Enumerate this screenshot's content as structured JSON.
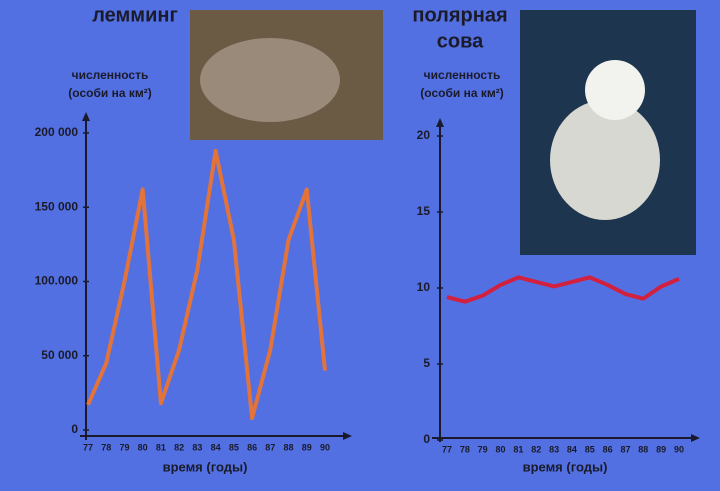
{
  "chart_data": [
    {
      "type": "line",
      "title": [
        "лемминг"
      ],
      "ylabel": [
        "численность",
        "(особи на км²)"
      ],
      "xlabel": "время (годы)",
      "categories": [
        "77",
        "78",
        "79",
        "80",
        "81",
        "82",
        "83",
        "84",
        "85",
        "86",
        "87",
        "88",
        "89",
        "90"
      ],
      "series": [
        {
          "color": "#e2733a",
          "values": [
            17000,
            45000,
            100000,
            162000,
            18000,
            54000,
            108000,
            188000,
            128000,
            8000,
            54000,
            128000,
            162000,
            40000
          ]
        }
      ],
      "ylim": [
        0,
        200000
      ],
      "yticks": [
        0,
        {
          "value": 50000,
          "label": "50 000"
        },
        {
          "value": 100000,
          "label": "100.000"
        },
        {
          "value": 150000,
          "label": "150 000"
        },
        {
          "value": 200000,
          "label": "200 000"
        }
      ]
    },
    {
      "type": "line",
      "title": [
        "полярная",
        "сова"
      ],
      "ylabel": [
        "численность",
        "(особи на км²)"
      ],
      "xlabel": "время (годы)",
      "categories": [
        "77",
        "78",
        "79",
        "80",
        "81",
        "82",
        "83",
        "84",
        "85",
        "86",
        "87",
        "88",
        "89",
        "90"
      ],
      "series": [
        {
          "color": "#d2203e",
          "values": [
            9.4,
            9.1,
            9.5,
            10.2,
            10.7,
            10.4,
            10.1,
            10.4,
            10.7,
            10.2,
            9.6,
            9.3,
            10.1,
            10.6
          ]
        }
      ],
      "ylim": [
        0,
        20
      ],
      "yticks": [
        0,
        5,
        10,
        15,
        20
      ]
    }
  ]
}
